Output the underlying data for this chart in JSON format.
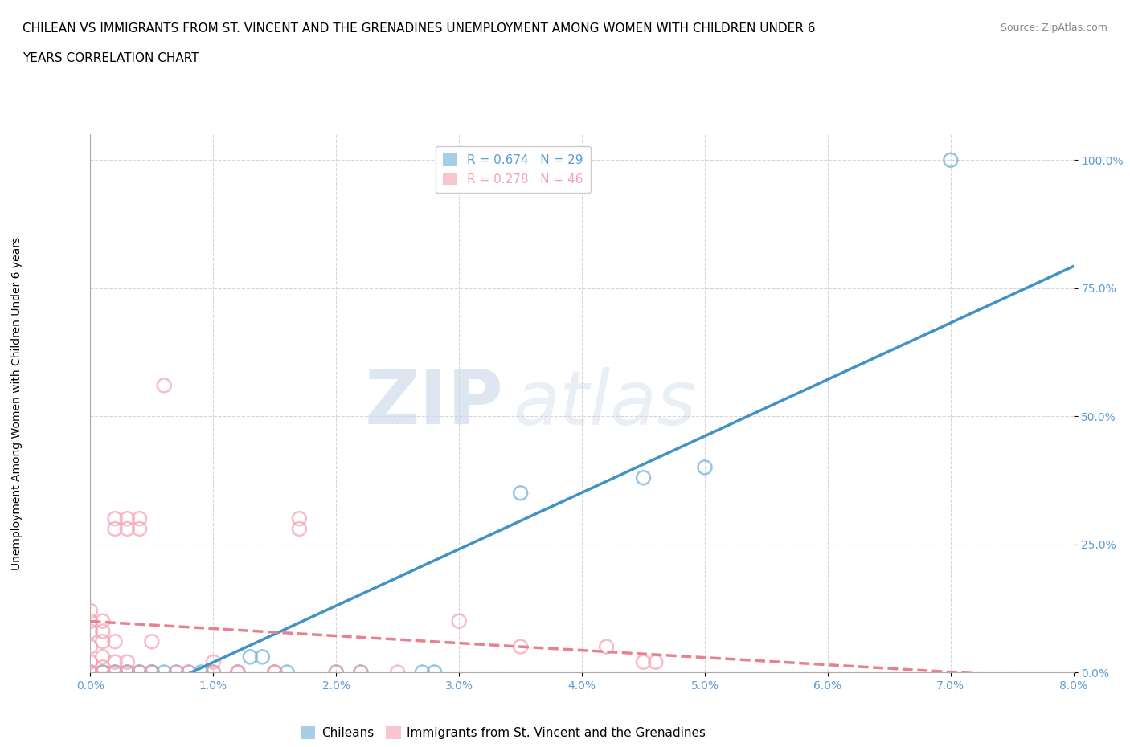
{
  "title_line1": "CHILEAN VS IMMIGRANTS FROM ST. VINCENT AND THE GRENADINES UNEMPLOYMENT AMONG WOMEN WITH CHILDREN UNDER 6",
  "title_line2": "YEARS CORRELATION CHART",
  "source": "Source: ZipAtlas.com",
  "ylabel": "Unemployment Among Women with Children Under 6 years",
  "xlim": [
    0.0,
    0.08
  ],
  "ylim": [
    0.0,
    1.05
  ],
  "xticks": [
    0.0,
    0.01,
    0.02,
    0.03,
    0.04,
    0.05,
    0.06,
    0.07,
    0.08
  ],
  "xtick_labels": [
    "0.0%",
    "1.0%",
    "2.0%",
    "3.0%",
    "4.0%",
    "5.0%",
    "6.0%",
    "7.0%",
    "8.0%"
  ],
  "yticks": [
    0.0,
    0.25,
    0.5,
    0.75,
    1.0
  ],
  "ytick_labels": [
    "0.0%",
    "25.0%",
    "50.0%",
    "75.0%",
    "100.0%"
  ],
  "legend_r1": "R = 0.674   N = 29",
  "legend_r2": "R = 0.278   N = 46",
  "legend_label1": "Chileans",
  "legend_label2": "Immigrants from St. Vincent and the Grenadines",
  "chilean_points": [
    [
      0.0,
      0.0
    ],
    [
      0.001,
      0.0
    ],
    [
      0.001,
      0.0
    ],
    [
      0.002,
      0.0
    ],
    [
      0.002,
      0.0
    ],
    [
      0.003,
      0.0
    ],
    [
      0.003,
      0.0
    ],
    [
      0.004,
      0.0
    ],
    [
      0.004,
      0.0
    ],
    [
      0.005,
      0.0
    ],
    [
      0.005,
      0.0
    ],
    [
      0.006,
      0.0
    ],
    [
      0.007,
      0.0
    ],
    [
      0.008,
      0.0
    ],
    [
      0.009,
      0.0
    ],
    [
      0.01,
      0.0
    ],
    [
      0.012,
      0.0
    ],
    [
      0.013,
      0.03
    ],
    [
      0.014,
      0.03
    ],
    [
      0.015,
      0.0
    ],
    [
      0.016,
      0.0
    ],
    [
      0.02,
      0.0
    ],
    [
      0.022,
      0.0
    ],
    [
      0.027,
      0.0
    ],
    [
      0.028,
      0.0
    ],
    [
      0.035,
      0.35
    ],
    [
      0.045,
      0.38
    ],
    [
      0.05,
      0.4
    ],
    [
      0.07,
      1.0
    ]
  ],
  "immigrant_points": [
    [
      0.0,
      0.0
    ],
    [
      0.0,
      0.0
    ],
    [
      0.0,
      0.02
    ],
    [
      0.0,
      0.05
    ],
    [
      0.0,
      0.08
    ],
    [
      0.0,
      0.1
    ],
    [
      0.0,
      0.12
    ],
    [
      0.001,
      0.0
    ],
    [
      0.001,
      0.01
    ],
    [
      0.001,
      0.03
    ],
    [
      0.001,
      0.06
    ],
    [
      0.001,
      0.08
    ],
    [
      0.001,
      0.1
    ],
    [
      0.002,
      0.0
    ],
    [
      0.002,
      0.02
    ],
    [
      0.002,
      0.06
    ],
    [
      0.002,
      0.28
    ],
    [
      0.002,
      0.3
    ],
    [
      0.003,
      0.0
    ],
    [
      0.003,
      0.02
    ],
    [
      0.003,
      0.28
    ],
    [
      0.003,
      0.3
    ],
    [
      0.004,
      0.0
    ],
    [
      0.004,
      0.28
    ],
    [
      0.004,
      0.3
    ],
    [
      0.005,
      0.0
    ],
    [
      0.005,
      0.06
    ],
    [
      0.006,
      0.56
    ],
    [
      0.007,
      0.0
    ],
    [
      0.008,
      0.0
    ],
    [
      0.01,
      0.0
    ],
    [
      0.01,
      0.02
    ],
    [
      0.012,
      0.0
    ],
    [
      0.012,
      0.0
    ],
    [
      0.015,
      0.0
    ],
    [
      0.015,
      0.0
    ],
    [
      0.017,
      0.28
    ],
    [
      0.017,
      0.3
    ],
    [
      0.02,
      0.0
    ],
    [
      0.022,
      0.0
    ],
    [
      0.025,
      0.0
    ],
    [
      0.03,
      0.1
    ],
    [
      0.035,
      0.05
    ],
    [
      0.042,
      0.05
    ],
    [
      0.045,
      0.02
    ],
    [
      0.046,
      0.02
    ]
  ],
  "chilean_color": "#6baed6",
  "immigrant_color": "#f4a0b0",
  "trend_chilean_color": "#4292c6",
  "trend_immigrant_color": "#e88090",
  "background_color": "#ffffff",
  "watermark_zip": "ZIP",
  "watermark_atlas": "atlas",
  "grid_color": "#cccccc",
  "tick_color": "#5b9bd5",
  "title_fontsize": 11,
  "axis_fontsize": 10,
  "legend_fontsize": 11
}
